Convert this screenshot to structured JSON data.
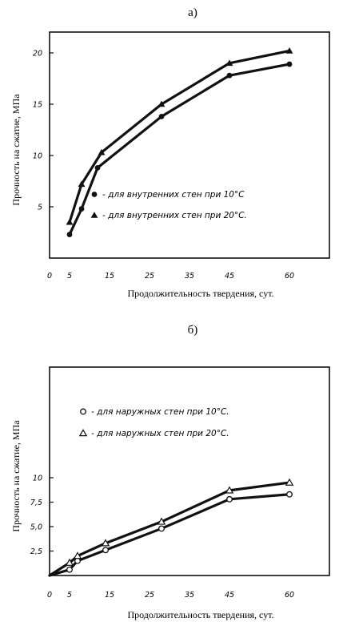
{
  "figure": {
    "charts": [
      {
        "panel_label": "а)",
        "legend": [
          {
            "marker": "circle-filled",
            "text": "- для внутренних стен при 10°С"
          },
          {
            "marker": "triangle-filled",
            "text": "- для внутренних стен при 20°С."
          }
        ]
      },
      {
        "panel_label": "б)",
        "legend": [
          {
            "marker": "circle-open",
            "text": "- для наружных стен при 10°С."
          },
          {
            "marker": "triangle-open",
            "text": "- для наружных стен при 20°С."
          }
        ]
      }
    ]
  },
  "chart_data": [
    {
      "type": "line",
      "panel": "а)",
      "xlabel": "Продолжительность твердения, сут.",
      "ylabel": "Прочность на сжатие, МПа",
      "x_ticks": [
        "0",
        "5",
        "15",
        "25",
        "35",
        "45",
        "60"
      ],
      "y_ticks": [
        "5",
        "10",
        "15",
        "20"
      ],
      "xlim": [
        0,
        60
      ],
      "ylim": [
        0,
        22
      ],
      "grid": false,
      "legend_position": "lower-right",
      "series": [
        {
          "name": "- для внутренних стен при 10°С",
          "marker": "circle-filled",
          "x": [
            5,
            8,
            12,
            28,
            45,
            60
          ],
          "y": [
            2.3,
            4.8,
            8.8,
            13.8,
            17.8,
            18.9
          ]
        },
        {
          "name": "- для внутренних стен при 20°С.",
          "marker": "triangle-filled",
          "x": [
            5,
            8,
            13,
            28,
            45,
            60
          ],
          "y": [
            3.5,
            7.2,
            10.3,
            15.0,
            19.0,
            20.2
          ]
        }
      ]
    },
    {
      "type": "line",
      "panel": "б)",
      "xlabel": "Продолжительность твердения, сут.",
      "ylabel": "Прочность на сжатие, МПа",
      "x_ticks": [
        "0",
        "5",
        "15",
        "25",
        "35",
        "45",
        "60"
      ],
      "y_ticks": [
        "2,5",
        "5,0",
        "7,5",
        "10"
      ],
      "xlim": [
        0,
        60
      ],
      "ylim": [
        0,
        21
      ],
      "grid": false,
      "legend_position": "center-right",
      "series": [
        {
          "name": "- для наружных стен при 10°С.",
          "marker": "circle-open",
          "x": [
            0,
            5,
            7,
            14,
            28,
            45,
            60
          ],
          "y": [
            0,
            0.6,
            1.5,
            2.6,
            4.8,
            7.8,
            8.3
          ]
        },
        {
          "name": "- для наружных стен при 20°С.",
          "marker": "triangle-open",
          "x": [
            0,
            5,
            7,
            14,
            28,
            45,
            60
          ],
          "y": [
            0,
            1.3,
            2.0,
            3.3,
            5.5,
            8.7,
            9.5
          ]
        }
      ]
    }
  ]
}
